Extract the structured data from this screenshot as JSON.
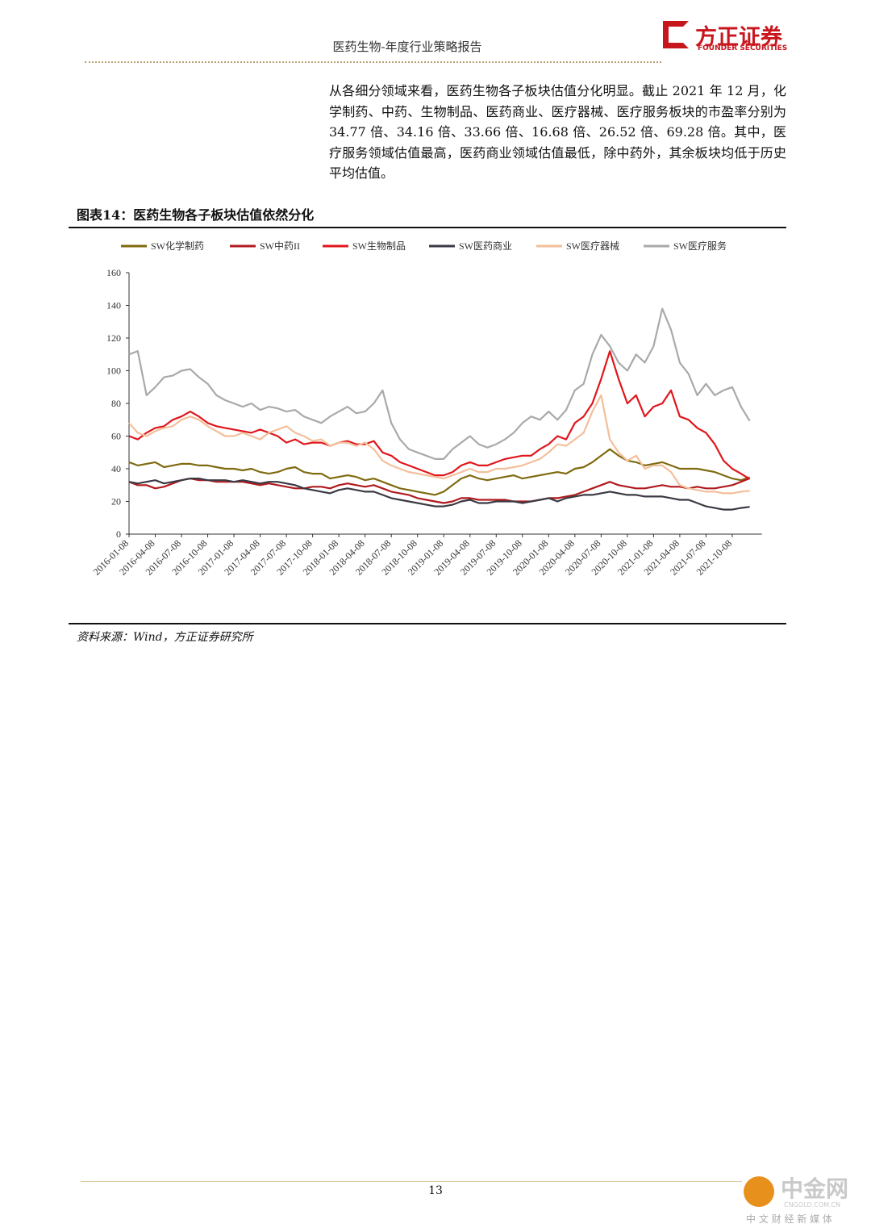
{
  "header": {
    "title": "医药生物-年度行业策略报告",
    "logo_name": "方正证券",
    "logo_en": "FOUNDER SECURITIES"
  },
  "paragraph": "从各细分领域来看，医药生物各子板块估值分化明显。截止 2021 年 12 月，化学制药、中药、生物制品、医药商业、医疗器械、医疗服务板块的市盈率分别为 34.77 倍、34.16 倍、33.66 倍、16.68 倍、26.52 倍、69.28 倍。其中，医疗服务领域估值最高，医药商业领域估值最低，除中药外，其余板块均低于历史平均估值。",
  "figure_caption": "图表14：医药生物各子板块估值依然分化",
  "source": "资料来源：Wind，方正证券研究所",
  "page_number": "13",
  "watermark": {
    "name": "中金网",
    "url": "CNGOLD.COM.CN",
    "slogan": "中 文 财 经 新 媒 体"
  },
  "chart_data": {
    "type": "line",
    "categories": [
      "2016-01-08",
      null,
      null,
      "2016-04-08",
      null,
      null,
      "2016-07-08",
      null,
      null,
      "2016-10-08",
      null,
      null,
      "2017-01-08",
      null,
      null,
      "2017-04-08",
      null,
      null,
      "2017-07-08",
      null,
      null,
      "2017-10-08",
      null,
      null,
      "2018-01-08",
      null,
      null,
      "2018-04-08",
      null,
      null,
      "2018-07-08",
      null,
      null,
      "2018-10-08",
      null,
      null,
      "2019-01-08",
      null,
      null,
      "2019-04-08",
      null,
      null,
      "2019-07-08",
      null,
      null,
      "2019-10-08",
      null,
      null,
      "2020-01-08",
      null,
      null,
      "2020-04-08",
      null,
      null,
      "2020-07-08",
      null,
      null,
      "2020-10-08",
      null,
      null,
      "2021-01-08",
      null,
      null,
      "2021-04-08",
      null,
      null,
      "2021-07-08",
      null,
      null,
      "2021-10-08",
      null,
      null
    ],
    "ylim": [
      0,
      160
    ],
    "yticks": [
      0,
      20,
      40,
      60,
      80,
      100,
      120,
      140,
      160
    ],
    "series": [
      {
        "name": "SW化学制药",
        "color": "#7f6a0f",
        "values": [
          44,
          42,
          43,
          44,
          41,
          42,
          43,
          43,
          42,
          42,
          41,
          40,
          40,
          39,
          40,
          38,
          37,
          38,
          40,
          41,
          38,
          37,
          37,
          34,
          35,
          36,
          35,
          33,
          34,
          32,
          30,
          28,
          27,
          26,
          25,
          24,
          26,
          30,
          34,
          36,
          34,
          33,
          34,
          35,
          36,
          34,
          35,
          36,
          37,
          38,
          37,
          40,
          41,
          44,
          48,
          52,
          48,
          45,
          44,
          42,
          43,
          44,
          42,
          40,
          40,
          40,
          39,
          38,
          36,
          34,
          33,
          34.77
        ]
      },
      {
        "name": "SW中药II",
        "color": "#b01a1e",
        "values": [
          32,
          30,
          30,
          28,
          29,
          31,
          33,
          34,
          33,
          33,
          32,
          32,
          32,
          32,
          31,
          30,
          31,
          30,
          29,
          28,
          28,
          29,
          29,
          28,
          30,
          31,
          30,
          29,
          30,
          28,
          26,
          25,
          24,
          22,
          21,
          20,
          19,
          20,
          22,
          22,
          21,
          21,
          21,
          21,
          20,
          20,
          20,
          21,
          22,
          22,
          23,
          24,
          26,
          28,
          30,
          32,
          30,
          29,
          28,
          28,
          29,
          30,
          29,
          29,
          28,
          29,
          28,
          28,
          29,
          30,
          32,
          34.16
        ]
      },
      {
        "name": "SW生物制品",
        "color": "#e0161b",
        "values": [
          60,
          58,
          62,
          65,
          66,
          70,
          72,
          75,
          72,
          68,
          66,
          65,
          64,
          63,
          62,
          64,
          62,
          60,
          56,
          58,
          55,
          56,
          56,
          54,
          56,
          57,
          55,
          55,
          57,
          50,
          48,
          44,
          42,
          40,
          38,
          36,
          36,
          38,
          42,
          44,
          42,
          42,
          44,
          46,
          47,
          48,
          48,
          52,
          55,
          60,
          58,
          68,
          72,
          80,
          95,
          112,
          95,
          80,
          85,
          72,
          78,
          80,
          88,
          72,
          70,
          65,
          62,
          55,
          45,
          40,
          37,
          33.66
        ]
      },
      {
        "name": "SW医药商业",
        "color": "#3a3a44",
        "values": [
          32,
          31,
          32,
          33,
          31,
          32,
          33,
          34,
          34,
          33,
          33,
          33,
          32,
          33,
          32,
          31,
          32,
          32,
          31,
          30,
          28,
          27,
          26,
          25,
          27,
          28,
          27,
          26,
          26,
          24,
          22,
          21,
          20,
          19,
          18,
          17,
          17,
          18,
          20,
          21,
          19,
          19,
          20,
          20,
          20,
          19,
          20,
          21,
          22,
          20,
          22,
          23,
          24,
          24,
          25,
          26,
          25,
          24,
          24,
          23,
          23,
          23,
          22,
          21,
          21,
          19,
          17,
          16,
          15,
          15,
          16,
          16.68
        ]
      },
      {
        "name": "SW医疗器械",
        "color": "#f3bf9a",
        "values": [
          68,
          62,
          60,
          63,
          65,
          66,
          70,
          72,
          70,
          66,
          63,
          60,
          60,
          62,
          60,
          58,
          62,
          64,
          66,
          62,
          60,
          57,
          58,
          54,
          56,
          56,
          54,
          56,
          52,
          45,
          42,
          40,
          38,
          37,
          36,
          35,
          34,
          36,
          38,
          40,
          38,
          38,
          40,
          40,
          41,
          42,
          44,
          46,
          50,
          55,
          54,
          58,
          62,
          75,
          85,
          58,
          50,
          45,
          48,
          40,
          42,
          42,
          38,
          30,
          28,
          27,
          26,
          26,
          25,
          25,
          26,
          26.52
        ]
      },
      {
        "name": "SW医疗服务",
        "color": "#a9a9ab",
        "values": [
          110,
          112,
          85,
          90,
          96,
          97,
          100,
          101,
          96,
          92,
          85,
          82,
          80,
          78,
          80,
          76,
          78,
          77,
          75,
          76,
          72,
          70,
          68,
          72,
          75,
          78,
          74,
          75,
          80,
          88,
          68,
          58,
          52,
          50,
          48,
          46,
          46,
          52,
          56,
          60,
          55,
          53,
          55,
          58,
          62,
          68,
          72,
          70,
          75,
          70,
          76,
          88,
          92,
          110,
          122,
          115,
          105,
          100,
          110,
          105,
          115,
          138,
          125,
          105,
          98,
          85,
          92,
          85,
          88,
          90,
          78,
          69.28
        ]
      }
    ]
  }
}
